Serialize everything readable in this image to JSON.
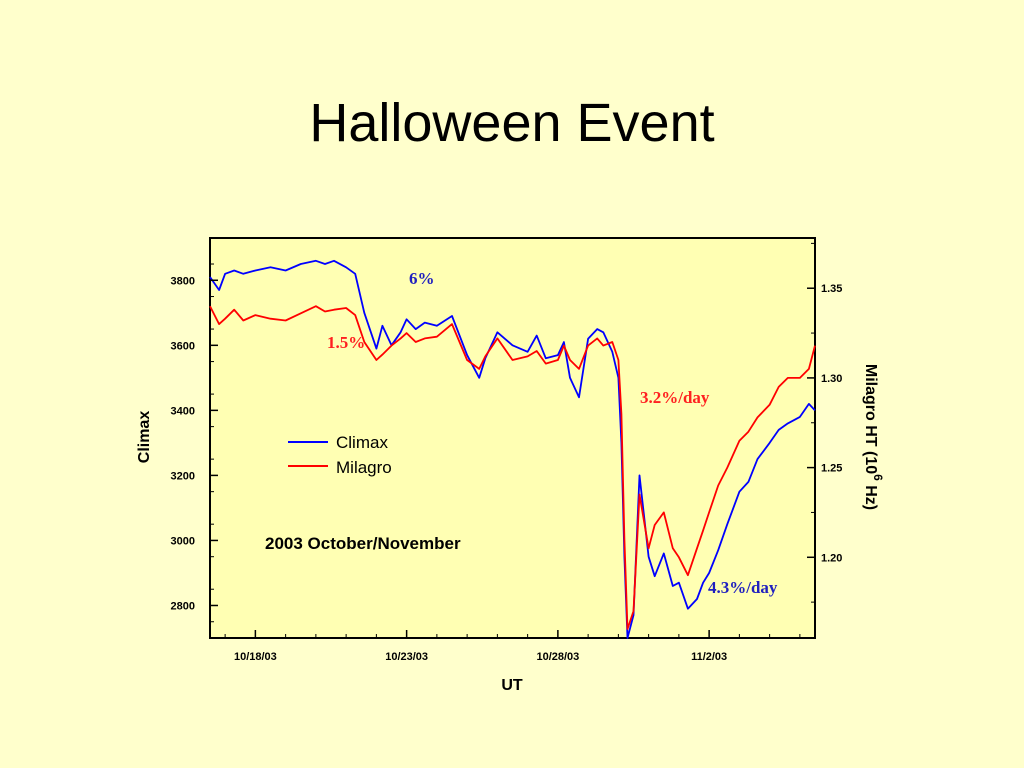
{
  "slide": {
    "title": "Halloween Event"
  },
  "chart_data": {
    "type": "line",
    "title": "Halloween Event",
    "subtitle": "2003 October/November",
    "xlabel": "UT",
    "ylabel_left": "Climax",
    "ylabel_right": "Milagro HT  (10",
    "ylabel_right_exp": "6",
    "ylabel_right_tail": " Hz)",
    "x_tick_labels": [
      "10/18/03",
      "10/23/03",
      "10/28/03",
      "11/2/03"
    ],
    "x_ticks_day": [
      18,
      23,
      28,
      33
    ],
    "xlim_day": [
      16.5,
      36.5
    ],
    "y_left_ticks": [
      2800,
      3000,
      3200,
      3400,
      3600,
      3800
    ],
    "y_left_lim": [
      2700,
      3930
    ],
    "y_right_ticks": [
      "1.20",
      "1.25",
      "1.30",
      "1.35"
    ],
    "y_right_lim": [
      1.155,
      1.378
    ],
    "grid": false,
    "legend_position": "middle-left",
    "series": [
      {
        "name": "Climax",
        "color": "#0000ff",
        "axis": "left",
        "x": [
          16.5,
          16.8,
          17.0,
          17.3,
          17.6,
          18.0,
          18.5,
          19.0,
          19.5,
          20.0,
          20.3,
          20.6,
          21.0,
          21.3,
          21.6,
          22.0,
          22.2,
          22.5,
          22.8,
          23.0,
          23.3,
          23.6,
          24.0,
          24.5,
          25.0,
          25.4,
          25.6,
          26.0,
          26.5,
          27.0,
          27.3,
          27.6,
          28.0,
          28.2,
          28.4,
          28.7,
          29.0,
          29.3,
          29.5,
          29.8,
          30.0,
          30.1,
          30.2,
          30.3,
          30.5,
          30.7,
          31.0,
          31.2,
          31.5,
          31.8,
          32.0,
          32.3,
          32.6,
          32.8,
          33.0,
          33.3,
          33.6,
          34.0,
          34.3,
          34.6,
          35.0,
          35.3,
          35.6,
          36.0,
          36.3,
          36.5
        ],
        "y": [
          3810,
          3770,
          3820,
          3830,
          3820,
          3830,
          3840,
          3830,
          3850,
          3860,
          3850,
          3860,
          3840,
          3820,
          3700,
          3590,
          3660,
          3600,
          3640,
          3680,
          3650,
          3670,
          3660,
          3690,
          3570,
          3500,
          3560,
          3640,
          3600,
          3580,
          3630,
          3560,
          3570,
          3610,
          3500,
          3440,
          3620,
          3650,
          3640,
          3580,
          3500,
          3300,
          2950,
          2700,
          2770,
          3200,
          2950,
          2890,
          2960,
          2860,
          2870,
          2790,
          2820,
          2870,
          2900,
          2970,
          3050,
          3150,
          3180,
          3250,
          3300,
          3340,
          3360,
          3380,
          3420,
          3400
        ]
      },
      {
        "name": "Milagro",
        "color": "#ff0000",
        "axis": "right",
        "x": [
          16.5,
          16.8,
          17.0,
          17.3,
          17.6,
          18.0,
          18.5,
          19.0,
          19.5,
          20.0,
          20.3,
          20.6,
          21.0,
          21.3,
          21.6,
          22.0,
          22.2,
          22.5,
          22.8,
          23.0,
          23.3,
          23.6,
          24.0,
          24.5,
          25.0,
          25.4,
          25.6,
          26.0,
          26.5,
          27.0,
          27.3,
          27.6,
          28.0,
          28.2,
          28.4,
          28.7,
          29.0,
          29.3,
          29.5,
          29.8,
          30.0,
          30.1,
          30.2,
          30.3,
          30.5,
          30.7,
          31.0,
          31.2,
          31.5,
          31.8,
          32.0,
          32.3,
          32.6,
          32.8,
          33.0,
          33.3,
          33.6,
          34.0,
          34.3,
          34.6,
          35.0,
          35.3,
          35.6,
          36.0,
          36.3,
          36.5
        ],
        "y": [
          1.34,
          1.33,
          1.333,
          1.338,
          1.332,
          1.335,
          1.333,
          1.332,
          1.336,
          1.34,
          1.337,
          1.338,
          1.339,
          1.335,
          1.32,
          1.31,
          1.313,
          1.318,
          1.322,
          1.325,
          1.32,
          1.322,
          1.323,
          1.33,
          1.31,
          1.305,
          1.312,
          1.322,
          1.31,
          1.312,
          1.315,
          1.308,
          1.31,
          1.318,
          1.31,
          1.305,
          1.318,
          1.322,
          1.318,
          1.32,
          1.31,
          1.28,
          1.21,
          1.16,
          1.17,
          1.235,
          1.205,
          1.218,
          1.225,
          1.205,
          1.2,
          1.19,
          1.205,
          1.215,
          1.225,
          1.24,
          1.25,
          1.265,
          1.27,
          1.278,
          1.285,
          1.295,
          1.3,
          1.3,
          1.305,
          1.318
        ]
      }
    ],
    "legend": [
      {
        "label": "Climax",
        "color": "#0000ff"
      },
      {
        "label": "Milagro",
        "color": "#ff0000"
      }
    ],
    "annotations": [
      {
        "text": "6%",
        "color": "#1f1fbf"
      },
      {
        "text": "1.5%",
        "color": "#ff2020"
      },
      {
        "text": "3.2%/day",
        "color": "#ff2020"
      },
      {
        "text": "4.3%/day",
        "color": "#1f1fbf"
      }
    ]
  }
}
